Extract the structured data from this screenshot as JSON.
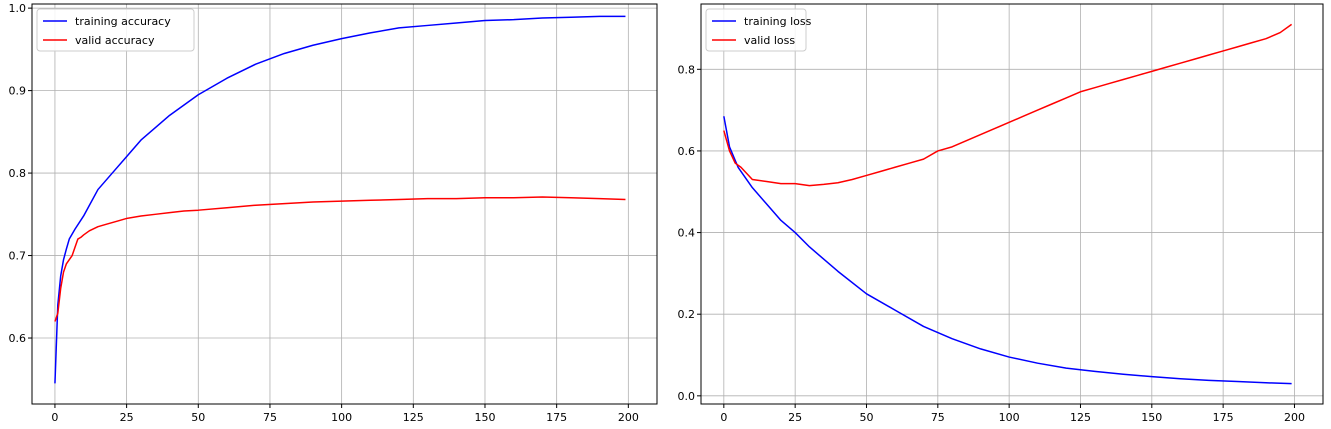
{
  "chart_data": [
    {
      "type": "line",
      "title": "",
      "xlabel": "",
      "ylabel": "",
      "xlim": [
        -8,
        210
      ],
      "ylim": [
        0.52,
        1.005
      ],
      "xticks": [
        0,
        25,
        50,
        75,
        100,
        125,
        150,
        175,
        200
      ],
      "yticks": [
        0.6,
        0.7,
        0.8,
        0.9,
        1.0
      ],
      "ytick_labels": [
        "0.6",
        "0.7",
        "0.8",
        "0.9",
        "1.0"
      ],
      "grid": true,
      "legend_position": "top-left",
      "series": [
        {
          "name": "training accuracy",
          "color": "#0000ff",
          "x": [
            0,
            1,
            2,
            3,
            4,
            5,
            7,
            10,
            15,
            20,
            25,
            30,
            40,
            50,
            60,
            70,
            80,
            90,
            100,
            110,
            120,
            130,
            140,
            150,
            160,
            170,
            180,
            190,
            199
          ],
          "y": [
            0.545,
            0.64,
            0.675,
            0.695,
            0.708,
            0.72,
            0.732,
            0.748,
            0.78,
            0.8,
            0.82,
            0.84,
            0.87,
            0.895,
            0.915,
            0.932,
            0.945,
            0.955,
            0.963,
            0.97,
            0.976,
            0.979,
            0.982,
            0.985,
            0.986,
            0.988,
            0.989,
            0.99,
            0.99
          ]
        },
        {
          "name": "valid accuracy",
          "color": "#ff0000",
          "x": [
            0,
            1,
            2,
            3,
            4,
            5,
            6,
            7,
            8,
            9,
            10,
            12,
            15,
            18,
            20,
            22,
            25,
            30,
            35,
            40,
            45,
            50,
            60,
            70,
            80,
            90,
            100,
            110,
            120,
            130,
            140,
            150,
            160,
            170,
            180,
            190,
            199
          ],
          "y": [
            0.62,
            0.63,
            0.66,
            0.68,
            0.69,
            0.695,
            0.7,
            0.71,
            0.72,
            0.722,
            0.725,
            0.73,
            0.735,
            0.738,
            0.74,
            0.742,
            0.745,
            0.748,
            0.75,
            0.752,
            0.754,
            0.755,
            0.758,
            0.761,
            0.763,
            0.765,
            0.766,
            0.767,
            0.768,
            0.769,
            0.769,
            0.77,
            0.77,
            0.771,
            0.77,
            0.769,
            0.768
          ]
        }
      ]
    },
    {
      "type": "line",
      "title": "",
      "xlabel": "",
      "ylabel": "",
      "xlim": [
        -8,
        210
      ],
      "ylim": [
        -0.02,
        0.96
      ],
      "xticks": [
        0,
        25,
        50,
        75,
        100,
        125,
        150,
        175,
        200
      ],
      "yticks": [
        0.0,
        0.2,
        0.4,
        0.6,
        0.8
      ],
      "ytick_labels": [
        "0.0",
        "0.2",
        "0.4",
        "0.6",
        "0.8"
      ],
      "grid": true,
      "legend_position": "top-left",
      "series": [
        {
          "name": "training loss",
          "color": "#0000ff",
          "x": [
            0,
            2,
            5,
            10,
            15,
            20,
            25,
            30,
            40,
            50,
            60,
            70,
            80,
            90,
            100,
            110,
            120,
            130,
            140,
            150,
            160,
            170,
            180,
            190,
            199
          ],
          "y": [
            0.685,
            0.61,
            0.56,
            0.51,
            0.47,
            0.43,
            0.4,
            0.365,
            0.305,
            0.25,
            0.21,
            0.17,
            0.14,
            0.115,
            0.095,
            0.08,
            0.068,
            0.06,
            0.053,
            0.047,
            0.042,
            0.038,
            0.035,
            0.032,
            0.03
          ]
        },
        {
          "name": "valid loss",
          "color": "#ff0000",
          "x": [
            0,
            2,
            4,
            6,
            8,
            10,
            15,
            20,
            25,
            30,
            35,
            40,
            45,
            50,
            55,
            60,
            65,
            70,
            75,
            80,
            85,
            90,
            95,
            100,
            105,
            110,
            115,
            120,
            125,
            130,
            135,
            140,
            145,
            150,
            155,
            160,
            165,
            170,
            175,
            180,
            185,
            190,
            195,
            199
          ],
          "y": [
            0.65,
            0.6,
            0.57,
            0.56,
            0.545,
            0.53,
            0.525,
            0.52,
            0.52,
            0.515,
            0.518,
            0.522,
            0.53,
            0.54,
            0.55,
            0.56,
            0.57,
            0.58,
            0.6,
            0.61,
            0.625,
            0.64,
            0.655,
            0.67,
            0.685,
            0.7,
            0.715,
            0.73,
            0.745,
            0.755,
            0.765,
            0.775,
            0.785,
            0.795,
            0.805,
            0.815,
            0.825,
            0.835,
            0.845,
            0.855,
            0.865,
            0.875,
            0.89,
            0.91
          ]
        }
      ]
    }
  ]
}
